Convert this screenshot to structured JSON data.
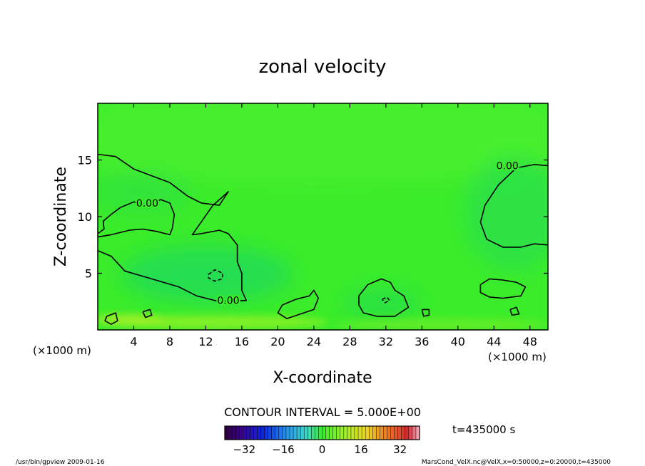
{
  "chart_data": {
    "type": "heatmap",
    "title": "zonal velocity",
    "xlabel": "X-coordinate",
    "ylabel": "Z-coordinate",
    "x_unit": "(×1000 m)",
    "y_unit": "(×1000 m)",
    "xlim": [
      0,
      50
    ],
    "ylim": [
      0,
      20
    ],
    "x_ticks": [
      4,
      8,
      12,
      16,
      20,
      24,
      28,
      32,
      36,
      40,
      44,
      48
    ],
    "y_ticks": [
      5,
      10,
      15
    ],
    "x_tick_labels": [
      "4",
      "8",
      "12",
      "16",
      "20",
      "24",
      "28",
      "32",
      "36",
      "40",
      "44",
      "48"
    ],
    "y_tick_labels": [
      "5",
      "10",
      "15"
    ],
    "contour_interval_text": "CONTOUR INTERVAL = 5.000E+00",
    "contour_labels": [
      {
        "text": "0.00",
        "x": 5.5,
        "y": 11.2
      },
      {
        "text": "0.00",
        "x": 14.5,
        "y": 2.6
      },
      {
        "text": "0.00",
        "x": 45.5,
        "y": 14.5
      }
    ],
    "zero_contours": [
      [
        [
          0,
          15.5
        ],
        [
          2,
          15.3
        ],
        [
          4,
          14.2
        ],
        [
          6,
          13.6
        ],
        [
          8,
          13.0
        ],
        [
          10,
          11.8
        ],
        [
          11.5,
          11.2
        ],
        [
          13.5,
          11.0
        ],
        [
          14.5,
          12.2
        ],
        [
          12.8,
          11.0
        ],
        [
          10.5,
          8.4
        ],
        [
          11.5,
          8.5
        ],
        [
          13.5,
          8.8
        ],
        [
          14.5,
          8.5
        ],
        [
          15.5,
          7.5
        ],
        [
          15.5,
          6.0
        ],
        [
          16.0,
          5.0
        ],
        [
          16.0,
          3.5
        ],
        [
          16.5,
          2.6
        ],
        [
          13.5,
          2.5
        ],
        [
          11.0,
          3.0
        ],
        [
          9.0,
          3.8
        ],
        [
          6.0,
          4.5
        ],
        [
          3.0,
          5.2
        ],
        [
          1.5,
          6.5
        ],
        [
          0,
          7.0
        ]
      ],
      [
        [
          0,
          8.2
        ],
        [
          1.5,
          8.4
        ],
        [
          3.5,
          8.8
        ],
        [
          5.0,
          8.9
        ],
        [
          6.5,
          8.7
        ],
        [
          8.0,
          8.4
        ],
        [
          8.3,
          9.0
        ],
        [
          8.5,
          10.2
        ],
        [
          8.0,
          11.2
        ],
        [
          7.0,
          11.5
        ],
        [
          5.5,
          11.0
        ],
        [
          4.0,
          11.3
        ],
        [
          2.5,
          10.8
        ],
        [
          1.5,
          10.2
        ],
        [
          0.6,
          9.6
        ],
        [
          0.7,
          8.9
        ],
        [
          0,
          8.5
        ]
      ],
      [
        [
          50,
          14.5
        ],
        [
          48.5,
          14.6
        ],
        [
          46.5,
          14.3
        ],
        [
          44.5,
          12.8
        ],
        [
          43.0,
          11.0
        ],
        [
          42.5,
          9.5
        ],
        [
          43.2,
          8.0
        ],
        [
          45.0,
          7.3
        ],
        [
          47.0,
          7.3
        ],
        [
          48.5,
          7.6
        ],
        [
          50,
          7.5
        ]
      ],
      [
        [
          20.5,
          2.2
        ],
        [
          22.0,
          2.7
        ],
        [
          23.5,
          3.0
        ],
        [
          24.0,
          3.5
        ],
        [
          24.5,
          2.8
        ],
        [
          24.0,
          1.8
        ],
        [
          22.5,
          1.4
        ],
        [
          21.0,
          1.0
        ],
        [
          20.0,
          1.5
        ],
        [
          20.5,
          2.2
        ]
      ],
      [
        [
          29.0,
          3.0
        ],
        [
          30.0,
          4.0
        ],
        [
          31.5,
          4.5
        ],
        [
          32.5,
          4.2
        ],
        [
          33.0,
          3.5
        ],
        [
          34.0,
          3.0
        ],
        [
          34.5,
          2.0
        ],
        [
          33.0,
          1.2
        ],
        [
          31.0,
          1.2
        ],
        [
          29.5,
          1.5
        ],
        [
          29.0,
          2.2
        ],
        [
          29.0,
          3.0
        ]
      ],
      [
        [
          42.5,
          4.0
        ],
        [
          43.5,
          4.5
        ],
        [
          45.0,
          4.4
        ],
        [
          46.5,
          4.2
        ],
        [
          47.5,
          3.8
        ],
        [
          47.0,
          3.0
        ],
        [
          45.0,
          2.8
        ],
        [
          43.5,
          2.9
        ],
        [
          42.5,
          3.3
        ],
        [
          42.5,
          4.0
        ]
      ],
      [
        [
          1.0,
          1.2
        ],
        [
          2.0,
          1.5
        ],
        [
          2.2,
          0.8
        ],
        [
          1.5,
          0.5
        ],
        [
          0.8,
          0.8
        ],
        [
          1.0,
          1.2
        ]
      ],
      [
        [
          5.0,
          1.6
        ],
        [
          5.8,
          1.8
        ],
        [
          6.0,
          1.3
        ],
        [
          5.3,
          1.1
        ],
        [
          5.0,
          1.6
        ]
      ],
      [
        [
          36.0,
          1.8
        ],
        [
          36.8,
          1.8
        ],
        [
          36.8,
          1.3
        ],
        [
          36.2,
          1.2
        ],
        [
          36.0,
          1.8
        ]
      ],
      [
        [
          45.8,
          1.8
        ],
        [
          46.5,
          2.0
        ],
        [
          46.8,
          1.4
        ],
        [
          46.0,
          1.3
        ],
        [
          45.8,
          1.8
        ]
      ]
    ],
    "negative_contours": [
      [
        [
          12.3,
          4.9
        ],
        [
          13.0,
          5.3
        ],
        [
          13.9,
          5.0
        ],
        [
          13.8,
          4.5
        ],
        [
          13.0,
          4.3
        ],
        [
          12.3,
          4.6
        ],
        [
          12.3,
          4.9
        ]
      ],
      [
        [
          31.6,
          2.7
        ],
        [
          32.1,
          2.9
        ],
        [
          32.4,
          2.6
        ],
        [
          31.9,
          2.4
        ],
        [
          31.6,
          2.7
        ]
      ]
    ],
    "colorbar": {
      "vmin": -40,
      "vmax": 40,
      "ticks": [
        -32,
        -16,
        0,
        16,
        32
      ],
      "tick_labels": [
        "−32",
        "−16",
        "0",
        "16",
        "32"
      ]
    },
    "time_label": "t=435000 s",
    "footer_left": "/usr/bin/gpview   2009-01-16",
    "footer_right": "MarsCond_VelX.nc@VelX,x=0:50000,z=0:20000,t=435000",
    "colors": {
      "field_base": "#3bec2a",
      "blue_region": "#22dd55",
      "yellow_region": "#88ef28",
      "contour": "#000000"
    }
  }
}
